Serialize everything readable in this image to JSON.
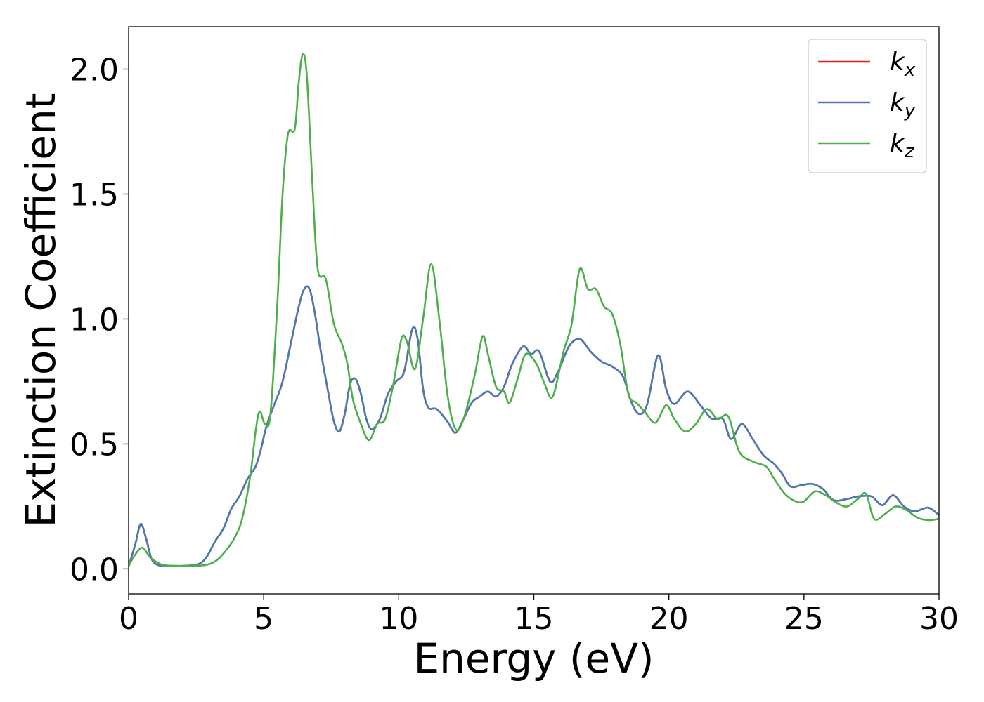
{
  "chart_data": {
    "type": "line",
    "title": "",
    "xlabel": "Energy (eV)",
    "ylabel": "Extinction Coefficient",
    "xlim": [
      0,
      30
    ],
    "ylim": [
      -0.1,
      2.17
    ],
    "xticks": [
      0,
      5,
      10,
      15,
      20,
      25,
      30
    ],
    "xtick_labels": [
      "0",
      "5",
      "10",
      "15",
      "20",
      "25",
      "30"
    ],
    "yticks": [
      0.0,
      0.5,
      1.0,
      1.5,
      2.0
    ],
    "ytick_labels": [
      "0.0",
      "0.5",
      "1.0",
      "1.5",
      "2.0"
    ],
    "grid": false,
    "legend_position": "top-right",
    "series": [
      {
        "name": "kx",
        "legend": {
          "base": "k",
          "sub": "x"
        },
        "color": "#e41a1c",
        "points": [
          [
            0,
            0.01
          ],
          [
            0.25,
            0.1
          ],
          [
            0.45,
            0.18
          ],
          [
            0.65,
            0.12
          ],
          [
            0.85,
            0.04
          ],
          [
            1.1,
            0.015
          ],
          [
            1.5,
            0.012
          ],
          [
            2.0,
            0.012
          ],
          [
            2.6,
            0.02
          ],
          [
            2.9,
            0.05
          ],
          [
            3.2,
            0.11
          ],
          [
            3.5,
            0.16
          ],
          [
            3.8,
            0.24
          ],
          [
            4.1,
            0.29
          ],
          [
            4.4,
            0.36
          ],
          [
            4.7,
            0.41
          ],
          [
            4.9,
            0.48
          ],
          [
            5.1,
            0.57
          ],
          [
            5.4,
            0.66
          ],
          [
            5.7,
            0.75
          ],
          [
            6.0,
            0.9
          ],
          [
            6.3,
            1.05
          ],
          [
            6.5,
            1.12
          ],
          [
            6.7,
            1.12
          ],
          [
            6.9,
            1.02
          ],
          [
            7.1,
            0.88
          ],
          [
            7.4,
            0.7
          ],
          [
            7.6,
            0.59
          ],
          [
            7.8,
            0.55
          ],
          [
            8.0,
            0.62
          ],
          [
            8.2,
            0.74
          ],
          [
            8.4,
            0.76
          ],
          [
            8.6,
            0.7
          ],
          [
            8.8,
            0.6
          ],
          [
            9.0,
            0.56
          ],
          [
            9.3,
            0.6
          ],
          [
            9.6,
            0.7
          ],
          [
            9.9,
            0.75
          ],
          [
            10.2,
            0.79
          ],
          [
            10.5,
            0.96
          ],
          [
            10.7,
            0.92
          ],
          [
            10.9,
            0.72
          ],
          [
            11.1,
            0.645
          ],
          [
            11.4,
            0.64
          ],
          [
            11.8,
            0.59
          ],
          [
            12.1,
            0.545
          ],
          [
            12.4,
            0.6
          ],
          [
            12.7,
            0.665
          ],
          [
            13.0,
            0.69
          ],
          [
            13.3,
            0.71
          ],
          [
            13.6,
            0.69
          ],
          [
            13.9,
            0.73
          ],
          [
            14.2,
            0.82
          ],
          [
            14.6,
            0.89
          ],
          [
            14.9,
            0.86
          ],
          [
            15.2,
            0.87
          ],
          [
            15.6,
            0.75
          ],
          [
            15.9,
            0.79
          ],
          [
            16.3,
            0.89
          ],
          [
            16.7,
            0.92
          ],
          [
            17.1,
            0.87
          ],
          [
            17.5,
            0.83
          ],
          [
            17.9,
            0.81
          ],
          [
            18.3,
            0.77
          ],
          [
            18.6,
            0.67
          ],
          [
            18.9,
            0.62
          ],
          [
            19.2,
            0.66
          ],
          [
            19.6,
            0.855
          ],
          [
            19.9,
            0.72
          ],
          [
            20.2,
            0.66
          ],
          [
            20.7,
            0.71
          ],
          [
            21.2,
            0.65
          ],
          [
            21.6,
            0.6
          ],
          [
            22.0,
            0.6
          ],
          [
            22.3,
            0.52
          ],
          [
            22.7,
            0.58
          ],
          [
            23.1,
            0.52
          ],
          [
            23.5,
            0.455
          ],
          [
            23.9,
            0.42
          ],
          [
            24.2,
            0.38
          ],
          [
            24.5,
            0.33
          ],
          [
            24.9,
            0.335
          ],
          [
            25.3,
            0.34
          ],
          [
            25.7,
            0.32
          ],
          [
            26.1,
            0.275
          ],
          [
            26.6,
            0.28
          ],
          [
            27.0,
            0.29
          ],
          [
            27.5,
            0.29
          ],
          [
            27.9,
            0.255
          ],
          [
            28.3,
            0.295
          ],
          [
            28.7,
            0.25
          ],
          [
            29.1,
            0.23
          ],
          [
            29.6,
            0.245
          ],
          [
            30.0,
            0.215
          ]
        ]
      },
      {
        "name": "ky",
        "legend": {
          "base": "k",
          "sub": "y"
        },
        "color": "#4a7ab5",
        "points": [
          [
            0,
            0.01
          ],
          [
            0.25,
            0.1
          ],
          [
            0.45,
            0.18
          ],
          [
            0.65,
            0.12
          ],
          [
            0.85,
            0.04
          ],
          [
            1.1,
            0.015
          ],
          [
            1.5,
            0.012
          ],
          [
            2.0,
            0.012
          ],
          [
            2.6,
            0.02
          ],
          [
            2.9,
            0.05
          ],
          [
            3.2,
            0.11
          ],
          [
            3.5,
            0.16
          ],
          [
            3.8,
            0.24
          ],
          [
            4.1,
            0.29
          ],
          [
            4.4,
            0.36
          ],
          [
            4.7,
            0.41
          ],
          [
            4.9,
            0.48
          ],
          [
            5.1,
            0.57
          ],
          [
            5.4,
            0.66
          ],
          [
            5.7,
            0.75
          ],
          [
            6.0,
            0.9
          ],
          [
            6.3,
            1.05
          ],
          [
            6.5,
            1.12
          ],
          [
            6.7,
            1.12
          ],
          [
            6.9,
            1.02
          ],
          [
            7.1,
            0.88
          ],
          [
            7.4,
            0.7
          ],
          [
            7.6,
            0.59
          ],
          [
            7.8,
            0.55
          ],
          [
            8.0,
            0.62
          ],
          [
            8.2,
            0.74
          ],
          [
            8.4,
            0.76
          ],
          [
            8.6,
            0.7
          ],
          [
            8.8,
            0.6
          ],
          [
            9.0,
            0.56
          ],
          [
            9.3,
            0.6
          ],
          [
            9.6,
            0.7
          ],
          [
            9.9,
            0.75
          ],
          [
            10.2,
            0.79
          ],
          [
            10.5,
            0.96
          ],
          [
            10.7,
            0.92
          ],
          [
            10.9,
            0.72
          ],
          [
            11.1,
            0.645
          ],
          [
            11.4,
            0.64
          ],
          [
            11.8,
            0.59
          ],
          [
            12.1,
            0.545
          ],
          [
            12.4,
            0.6
          ],
          [
            12.7,
            0.665
          ],
          [
            13.0,
            0.69
          ],
          [
            13.3,
            0.71
          ],
          [
            13.6,
            0.69
          ],
          [
            13.9,
            0.73
          ],
          [
            14.2,
            0.82
          ],
          [
            14.6,
            0.89
          ],
          [
            14.9,
            0.86
          ],
          [
            15.2,
            0.87
          ],
          [
            15.6,
            0.75
          ],
          [
            15.9,
            0.79
          ],
          [
            16.3,
            0.89
          ],
          [
            16.7,
            0.92
          ],
          [
            17.1,
            0.87
          ],
          [
            17.5,
            0.83
          ],
          [
            17.9,
            0.81
          ],
          [
            18.3,
            0.77
          ],
          [
            18.6,
            0.67
          ],
          [
            18.9,
            0.62
          ],
          [
            19.2,
            0.66
          ],
          [
            19.6,
            0.855
          ],
          [
            19.9,
            0.72
          ],
          [
            20.2,
            0.66
          ],
          [
            20.7,
            0.71
          ],
          [
            21.2,
            0.65
          ],
          [
            21.6,
            0.6
          ],
          [
            22.0,
            0.6
          ],
          [
            22.3,
            0.52
          ],
          [
            22.7,
            0.58
          ],
          [
            23.1,
            0.52
          ],
          [
            23.5,
            0.455
          ],
          [
            23.9,
            0.42
          ],
          [
            24.2,
            0.38
          ],
          [
            24.5,
            0.33
          ],
          [
            24.9,
            0.335
          ],
          [
            25.3,
            0.34
          ],
          [
            25.7,
            0.32
          ],
          [
            26.1,
            0.275
          ],
          [
            26.6,
            0.28
          ],
          [
            27.0,
            0.29
          ],
          [
            27.5,
            0.29
          ],
          [
            27.9,
            0.255
          ],
          [
            28.3,
            0.295
          ],
          [
            28.7,
            0.25
          ],
          [
            29.1,
            0.23
          ],
          [
            29.6,
            0.245
          ],
          [
            30.0,
            0.215
          ]
        ]
      },
      {
        "name": "kz",
        "legend": {
          "base": "k",
          "sub": "z"
        },
        "color": "#4daf4a",
        "points": [
          [
            0,
            0.01
          ],
          [
            0.2,
            0.05
          ],
          [
            0.5,
            0.085
          ],
          [
            0.8,
            0.045
          ],
          [
            1.0,
            0.03
          ],
          [
            1.3,
            0.015
          ],
          [
            2.0,
            0.012
          ],
          [
            2.8,
            0.015
          ],
          [
            3.2,
            0.03
          ],
          [
            3.5,
            0.06
          ],
          [
            3.9,
            0.12
          ],
          [
            4.2,
            0.2
          ],
          [
            4.5,
            0.37
          ],
          [
            4.7,
            0.55
          ],
          [
            4.85,
            0.63
          ],
          [
            5.05,
            0.58
          ],
          [
            5.25,
            0.62
          ],
          [
            5.5,
            1.05
          ],
          [
            5.7,
            1.5
          ],
          [
            5.9,
            1.74
          ],
          [
            6.15,
            1.76
          ],
          [
            6.3,
            1.95
          ],
          [
            6.45,
            2.06
          ],
          [
            6.6,
            1.97
          ],
          [
            6.8,
            1.55
          ],
          [
            7.0,
            1.2
          ],
          [
            7.3,
            1.16
          ],
          [
            7.6,
            0.98
          ],
          [
            7.9,
            0.9
          ],
          [
            8.1,
            0.82
          ],
          [
            8.3,
            0.68
          ],
          [
            8.6,
            0.58
          ],
          [
            8.9,
            0.515
          ],
          [
            9.2,
            0.58
          ],
          [
            9.5,
            0.6
          ],
          [
            9.8,
            0.74
          ],
          [
            10.1,
            0.92
          ],
          [
            10.3,
            0.91
          ],
          [
            10.6,
            0.8
          ],
          [
            10.9,
            1.0
          ],
          [
            11.2,
            1.22
          ],
          [
            11.5,
            1.0
          ],
          [
            11.8,
            0.7
          ],
          [
            12.1,
            0.56
          ],
          [
            12.4,
            0.6
          ],
          [
            12.8,
            0.77
          ],
          [
            13.1,
            0.93
          ],
          [
            13.3,
            0.86
          ],
          [
            13.6,
            0.73
          ],
          [
            13.9,
            0.71
          ],
          [
            14.1,
            0.665
          ],
          [
            14.4,
            0.76
          ],
          [
            14.7,
            0.86
          ],
          [
            15.1,
            0.82
          ],
          [
            15.4,
            0.74
          ],
          [
            15.7,
            0.69
          ],
          [
            16.1,
            0.87
          ],
          [
            16.4,
            0.98
          ],
          [
            16.7,
            1.2
          ],
          [
            17.0,
            1.12
          ],
          [
            17.3,
            1.12
          ],
          [
            17.6,
            1.05
          ],
          [
            17.9,
            1.02
          ],
          [
            18.2,
            0.9
          ],
          [
            18.5,
            0.7
          ],
          [
            18.8,
            0.665
          ],
          [
            19.1,
            0.63
          ],
          [
            19.5,
            0.585
          ],
          [
            19.9,
            0.655
          ],
          [
            20.2,
            0.6
          ],
          [
            20.6,
            0.55
          ],
          [
            21.0,
            0.58
          ],
          [
            21.4,
            0.64
          ],
          [
            21.8,
            0.6
          ],
          [
            22.2,
            0.61
          ],
          [
            22.6,
            0.47
          ],
          [
            23.1,
            0.43
          ],
          [
            23.6,
            0.41
          ],
          [
            23.9,
            0.36
          ],
          [
            24.3,
            0.3
          ],
          [
            24.7,
            0.27
          ],
          [
            25.0,
            0.27
          ],
          [
            25.4,
            0.31
          ],
          [
            25.8,
            0.295
          ],
          [
            26.2,
            0.265
          ],
          [
            26.6,
            0.25
          ],
          [
            27.0,
            0.28
          ],
          [
            27.3,
            0.3
          ],
          [
            27.6,
            0.2
          ],
          [
            28.0,
            0.22
          ],
          [
            28.4,
            0.25
          ],
          [
            28.8,
            0.235
          ],
          [
            29.2,
            0.205
          ],
          [
            29.6,
            0.195
          ],
          [
            30.0,
            0.2
          ]
        ]
      }
    ]
  }
}
